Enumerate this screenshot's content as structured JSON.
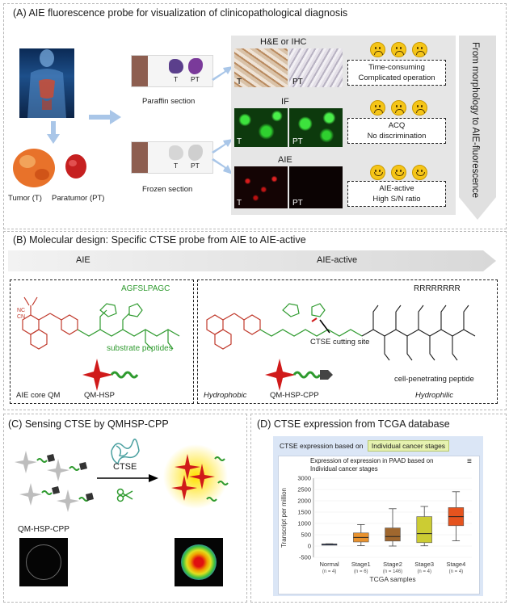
{
  "panelA": {
    "title": "(A) AIE fluorescence probe for visualization of clinicopathological diagnosis",
    "tumor_label": "Tumor (T)",
    "paratumor_label": "Paratumor (PT)",
    "paraffin_label": "Paraffin section",
    "frozen_label": "Frozen section",
    "t": "T",
    "pt": "PT",
    "rows": [
      {
        "method": "H&E or IHC",
        "line1": "Time-consuming",
        "line2": "Complicated operation",
        "mood": "sad"
      },
      {
        "method": "IF",
        "line1": "ACQ",
        "line2": "No discrimination",
        "mood": "sad"
      },
      {
        "method": "AIE",
        "line1": "AIE-active",
        "line2": "High S/N ratio",
        "mood": "happy"
      }
    ],
    "arrow_text": "From morphology to AIE-fluorescence",
    "colors": {
      "he": "#c9a98a",
      "if_green": "#1fb51f",
      "aie_red": "#c01515",
      "section_brown": "#8d5e50"
    }
  },
  "panelB": {
    "title": "(B) Molecular design: Specific CTSE probe from AIE to AIE-active",
    "banner_left": "AIE",
    "banner_right": "AIE-active",
    "left": {
      "sequence": "AGFSLPAGC",
      "substrate": "substrate peptides",
      "core": "AIE core QM",
      "probe": "QM-HSP"
    },
    "right": {
      "sequence": "RRRRRRRR",
      "cutting": "CTSE cutting site",
      "hydrophobic": "Hydrophobic",
      "probe": "QM-HSP-CPP",
      "cpp": "cell-penetrating peptide",
      "hydrophilic": "Hydrophilic"
    }
  },
  "panelC": {
    "title": "(C) Sensing CTSE by QMHSP-CPP",
    "enzyme": "CTSE",
    "probe": "QM-HSP-CPP"
  },
  "panelD": {
    "title": "(D) CTSE expression from TCGA database"
  },
  "chart_data": {
    "type": "boxplot",
    "header_prefix": "CTSE expression based on",
    "header_tag": "Individual cancer stages",
    "title": "Expression of expression in PAAD based on Individual cancer stages",
    "ylabel": "Transcript per million",
    "xlabel": "TCGA samples",
    "ylim": [
      -500,
      3000
    ],
    "yticks": [
      "3000",
      "2500",
      "2000",
      "1500",
      "1000",
      "500",
      "0",
      "-500"
    ],
    "yticks_values": [
      3000,
      2500,
      2000,
      1500,
      1000,
      500,
      0,
      -500
    ],
    "categories": [
      "Normal",
      "Stage1",
      "Stage2",
      "Stage3",
      "Stage4"
    ],
    "counts": [
      "(n = 4)",
      "(n = 6)",
      "(n = 146)",
      "(n = 4)",
      "(n = 4)"
    ],
    "series": [
      {
        "name": "Normal",
        "min": 50,
        "q1": 60,
        "median": 75,
        "q3": 90,
        "max": 100,
        "color": "#1f3d8c"
      },
      {
        "name": "Stage1",
        "min": 20,
        "q1": 180,
        "median": 380,
        "q3": 580,
        "max": 950,
        "color": "#e8922e"
      },
      {
        "name": "Stage2",
        "min": 0,
        "q1": 220,
        "median": 420,
        "q3": 800,
        "max": 1650,
        "color": "#a0672e"
      },
      {
        "name": "Stage3",
        "min": 10,
        "q1": 150,
        "median": 550,
        "q3": 1300,
        "max": 1750,
        "color": "#cccc33"
      },
      {
        "name": "Stage4",
        "min": 230,
        "q1": 900,
        "median": 1300,
        "q3": 1700,
        "max": 2400,
        "color": "#e5531e"
      }
    ]
  }
}
